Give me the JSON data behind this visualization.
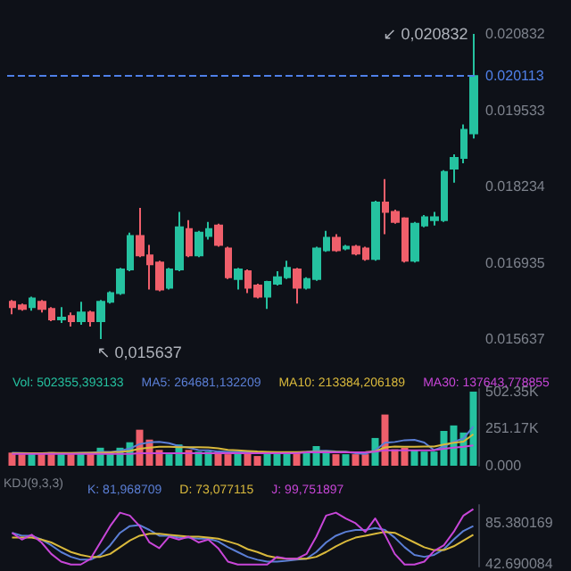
{
  "chart_data": [
    {
      "type": "candlestick",
      "categories": [
        null,
        null,
        null,
        null,
        null,
        null,
        null,
        null,
        null,
        null,
        null,
        null,
        null,
        null,
        null,
        null,
        null,
        null,
        null,
        null,
        null,
        null,
        null,
        null,
        null,
        null,
        null,
        null,
        null,
        null,
        null,
        null,
        null,
        null,
        null,
        null,
        null,
        null,
        null,
        null,
        null,
        null,
        null,
        null,
        null,
        null,
        null,
        null
      ],
      "ohlc": [
        [
          0.01627,
          0.0163,
          0.01606,
          0.01618
        ],
        [
          0.01621,
          0.01624,
          0.01612,
          0.01615
        ],
        [
          0.01618,
          0.01636,
          0.01612,
          0.01633
        ],
        [
          0.01627,
          0.0163,
          0.01609,
          0.01615
        ],
        [
          0.01615,
          0.01618,
          0.01594,
          0.01597
        ],
        [
          0.01597,
          0.01618,
          0.01591,
          0.016
        ],
        [
          0.01603,
          0.01609,
          0.01585,
          0.01594
        ],
        [
          0.01594,
          0.01627,
          0.01588,
          0.01609
        ],
        [
          0.01609,
          0.01612,
          0.01585,
          0.01594
        ],
        [
          0.01594,
          0.0163,
          0.015637,
          0.01627
        ],
        [
          0.01627,
          0.01645,
          0.01624,
          0.01642
        ],
        [
          0.01642,
          0.01685,
          0.01639,
          0.01682
        ],
        [
          0.01682,
          0.01745,
          0.01679,
          0.01739
        ],
        [
          0.01739,
          0.01787,
          0.01703,
          0.01706
        ],
        [
          0.01706,
          0.01724,
          0.01648,
          0.01691
        ],
        [
          0.01694,
          0.01697,
          0.01645,
          0.01648
        ],
        [
          0.01651,
          0.01685,
          0.01648,
          0.01682
        ],
        [
          0.01682,
          0.0178,
          0.01679,
          0.01754
        ],
        [
          0.01751,
          0.01766,
          0.01703,
          0.01706
        ],
        [
          0.01706,
          0.01748,
          0.01703,
          0.01745
        ],
        [
          0.01739,
          0.01763,
          0.01733,
          0.01751
        ],
        [
          0.01757,
          0.0176,
          0.01721,
          0.01724
        ],
        [
          0.01718,
          0.01721,
          0.01666,
          0.01669
        ],
        [
          0.01666,
          0.01685,
          0.01648,
          0.01682
        ],
        [
          0.01679,
          0.01682,
          0.01642,
          0.01651
        ],
        [
          0.01655,
          0.01658,
          0.01633,
          0.01636
        ],
        [
          0.01636,
          0.01663,
          0.01615,
          0.01661
        ],
        [
          0.01658,
          0.01679,
          0.01655,
          0.01669
        ],
        [
          0.01669,
          0.01697,
          0.01666,
          0.01685
        ],
        [
          0.01682,
          0.01685,
          0.01624,
          0.01651
        ],
        [
          0.01651,
          0.01669,
          0.01648,
          0.01666
        ],
        [
          0.01666,
          0.01721,
          0.01663,
          0.01718
        ],
        [
          0.01715,
          0.01748,
          0.01712,
          0.01736
        ],
        [
          0.01736,
          0.01742,
          0.01712,
          0.01715
        ],
        [
          0.01718,
          0.01724,
          0.01715,
          0.01721
        ],
        [
          0.01721,
          0.01724,
          0.01706,
          0.01709
        ],
        [
          0.01718,
          0.01721,
          0.01697,
          0.017
        ],
        [
          0.017,
          0.01799,
          0.01697,
          0.01796
        ],
        [
          0.01796,
          0.01836,
          0.01742,
          0.0178
        ],
        [
          0.0178,
          0.01784,
          0.0176,
          0.01763
        ],
        [
          0.01769,
          0.01771,
          0.01694,
          0.01697
        ],
        [
          0.01697,
          0.01763,
          0.01694,
          0.0176
        ],
        [
          0.01757,
          0.01775,
          0.01754,
          0.01771
        ],
        [
          0.01766,
          0.0178,
          0.01757,
          0.01771
        ],
        [
          0.01766,
          0.01851,
          0.01763,
          0.01848
        ],
        [
          0.01854,
          0.01878,
          0.0183,
          0.01872
        ],
        [
          0.01872,
          0.01929,
          0.01863,
          0.0192
        ],
        [
          0.01914,
          0.020832,
          0.01905,
          0.020113
        ]
      ],
      "colors": [
        "#ef5f6b",
        "#ef5f6b",
        "#25c2a0",
        "#ef5f6b",
        "#ef5f6b",
        "#25c2a0",
        "#ef5f6b",
        "#25c2a0",
        "#ef5f6b",
        "#25c2a0",
        "#25c2a0",
        "#25c2a0",
        "#25c2a0",
        "#ef5f6b",
        "#ef5f6b",
        "#ef5f6b",
        "#25c2a0",
        "#25c2a0",
        "#ef5f6b",
        "#25c2a0",
        "#25c2a0",
        "#ef5f6b",
        "#ef5f6b",
        "#25c2a0",
        "#ef5f6b",
        "#ef5f6b",
        "#25c2a0",
        "#25c2a0",
        "#25c2a0",
        "#ef5f6b",
        "#25c2a0",
        "#25c2a0",
        "#25c2a0",
        "#ef5f6b",
        "#25c2a0",
        "#ef5f6b",
        "#ef5f6b",
        "#25c2a0",
        "#ef5f6b",
        "#ef5f6b",
        "#ef5f6b",
        "#25c2a0",
        "#25c2a0",
        "#25c2a0",
        "#25c2a0",
        "#25c2a0",
        "#25c2a0",
        "#25c2a0"
      ],
      "ylim": [
        0.015637,
        0.020832
      ],
      "yticks": [
        0.015637,
        0.016935,
        0.018234,
        0.019533,
        0.020832
      ],
      "ref_lines": [
        {
          "axis": "y",
          "value": 0.020113,
          "label": "0.020113",
          "color": "#4f80e8",
          "line_style": "dashed"
        }
      ],
      "annotations": [
        "↙ 0,020832",
        "↖ 0,015637"
      ],
      "tick_labels": "y"
    },
    {
      "type": "bar",
      "categories": [
        null,
        null,
        null,
        null,
        null,
        null,
        null,
        null,
        null,
        null,
        null,
        null,
        null,
        null,
        null,
        null,
        null,
        null,
        null,
        null,
        null,
        null,
        null,
        null,
        null,
        null,
        null,
        null,
        null,
        null,
        null,
        null,
        null,
        null,
        null,
        null,
        null,
        null,
        null,
        null,
        null,
        null,
        null,
        null,
        null,
        null,
        null,
        null
      ],
      "series": [
        {
          "name": "Vol: 502355,393133",
          "type": "bar",
          "values": [
            89000,
            78000,
            89000,
            85000,
            92000,
            78000,
            89000,
            89000,
            89000,
            122000,
            89000,
            122000,
            159000,
            244000,
            177000,
            107000,
            78000,
            144000,
            107000,
            96000,
            96000,
            96000,
            78000,
            96000,
            96000,
            66000,
            96000,
            89000,
            96000,
            89000,
            96000,
            133000,
            89000,
            78000,
            78000,
            78000,
            78000,
            188000,
            347000,
            111000,
            122000,
            107000,
            96000,
            96000,
            236000,
            273000,
            225000,
            502355
          ],
          "colors": [
            "#ef5f6b",
            "#ef5f6b",
            "#25c2a0",
            "#ef5f6b",
            "#ef5f6b",
            "#25c2a0",
            "#ef5f6b",
            "#25c2a0",
            "#ef5f6b",
            "#25c2a0",
            "#25c2a0",
            "#25c2a0",
            "#25c2a0",
            "#ef5f6b",
            "#ef5f6b",
            "#ef5f6b",
            "#25c2a0",
            "#25c2a0",
            "#ef5f6b",
            "#25c2a0",
            "#25c2a0",
            "#ef5f6b",
            "#ef5f6b",
            "#25c2a0",
            "#ef5f6b",
            "#ef5f6b",
            "#25c2a0",
            "#25c2a0",
            "#25c2a0",
            "#ef5f6b",
            "#25c2a0",
            "#25c2a0",
            "#25c2a0",
            "#ef5f6b",
            "#25c2a0",
            "#ef5f6b",
            "#ef5f6b",
            "#25c2a0",
            "#ef5f6b",
            "#ef5f6b",
            "#ef5f6b",
            "#25c2a0",
            "#25c2a0",
            "#25c2a0",
            "#25c2a0",
            "#25c2a0",
            "#25c2a0",
            "#25c2a0"
          ]
        },
        {
          "name": "MA5: 264681,132209",
          "type": "line",
          "color": "#5b7fd6",
          "values": [
            88000,
            86000,
            85000,
            84000,
            86000,
            84000,
            85000,
            87000,
            87000,
            93000,
            93000,
            102000,
            116000,
            147000,
            158000,
            162000,
            153000,
            133000,
            123000,
            106000,
            104000,
            96000,
            94000,
            93000,
            92000,
            86000,
            86000,
            87000,
            89000,
            89000,
            93000,
            100000,
            101000,
            97000,
            95000,
            84000,
            80000,
            104000,
            156000,
            161000,
            173000,
            175000,
            157000,
            106000,
            131000,
            162000,
            185000,
            264681
          ]
        },
        {
          "name": "MA10: 213384,206189",
          "type": "line",
          "color": "#d9b93c",
          "values": [
            85000,
            85000,
            85000,
            85000,
            86000,
            86000,
            86000,
            86000,
            87000,
            88000,
            90000,
            94000,
            100000,
            115000,
            122000,
            128000,
            128000,
            125000,
            125000,
            125000,
            124000,
            118000,
            108000,
            104000,
            100000,
            96000,
            94000,
            92000,
            92000,
            92000,
            93000,
            93000,
            94000,
            93000,
            92000,
            91000,
            92000,
            97000,
            124000,
            130000,
            128000,
            128000,
            130000,
            130000,
            143000,
            156000,
            163000,
            213384
          ]
        },
        {
          "name": "MA30: 137643,778855",
          "type": "line",
          "color": "#c846d8",
          "values": [
            80000,
            80000,
            80000,
            80000,
            80000,
            80000,
            80000,
            80000,
            80000,
            80000,
            80000,
            80000,
            80000,
            85000,
            85000,
            85000,
            85000,
            85000,
            85000,
            85000,
            85000,
            85000,
            85000,
            85000,
            85000,
            85000,
            85000,
            85000,
            85000,
            85000,
            90000,
            90000,
            90000,
            90000,
            90000,
            90000,
            90000,
            95000,
            105000,
            105000,
            105000,
            105000,
            105000,
            105000,
            115000,
            122000,
            128000,
            137644
          ]
        }
      ],
      "ylim": [
        0,
        520000
      ],
      "yticks": [
        {
          "value": 0,
          "label": "0.000"
        },
        {
          "value": 251170,
          "label": "251.17K"
        },
        {
          "value": 502350,
          "label": "502.35K"
        }
      ],
      "legend": "top",
      "marker": "none",
      "tick_labels": "y"
    },
    {
      "type": "line",
      "title": "KDJ(9,3,3)",
      "categories": [
        null,
        null,
        null,
        null,
        null,
        null,
        null,
        null,
        null,
        null,
        null,
        null,
        null,
        null,
        null,
        null,
        null,
        null,
        null,
        null,
        null,
        null,
        null,
        null,
        null,
        null,
        null,
        null,
        null,
        null,
        null,
        null,
        null,
        null,
        null,
        null,
        null,
        null,
        null,
        null,
        null,
        null,
        null,
        null,
        null,
        null,
        null,
        null
      ],
      "series": [
        {
          "name": "K: 81,968709",
          "color": "#5b7fd6",
          "values": [
            75,
            72,
            72,
            68,
            62,
            55,
            50,
            47,
            47,
            52,
            62,
            75,
            82,
            83,
            78,
            72,
            72,
            70,
            70,
            69,
            69,
            66,
            60,
            55,
            50,
            47,
            45,
            45,
            46,
            47,
            48,
            55,
            65,
            72,
            76,
            78,
            78,
            80,
            78,
            70,
            60,
            52,
            50,
            52,
            58,
            68,
            77,
            81.968709
          ]
        },
        {
          "name": "D: 73,077115",
          "color": "#d9b93c",
          "values": [
            70,
            70,
            70,
            68,
            65,
            60,
            55,
            52,
            50,
            50,
            53,
            60,
            67,
            72,
            74,
            74,
            73,
            72,
            71,
            71,
            70,
            69,
            66,
            63,
            58,
            55,
            51,
            49,
            48,
            48,
            48,
            50,
            55,
            61,
            66,
            70,
            72,
            74,
            76,
            75,
            70,
            65,
            60,
            57,
            57,
            61,
            67,
            73.077115
          ]
        },
        {
          "name": "J: 99,751897",
          "color": "#c846d8",
          "values": [
            75,
            68,
            73,
            65,
            53,
            45,
            42,
            42,
            48,
            65,
            82,
            96,
            93,
            82,
            65,
            59,
            71,
            68,
            71,
            65,
            68,
            59,
            45,
            42,
            42,
            42,
            42,
            50,
            48,
            48,
            53,
            71,
            93,
            96,
            90,
            85,
            76,
            90,
            73,
            53,
            42,
            42,
            45,
            56,
            62,
            76,
            93,
            99.751897
          ]
        }
      ],
      "ylim": [
        40,
        104
      ],
      "yticks": [
        42.690084,
        85.380169
      ],
      "legend": "top left",
      "marker": "none",
      "tick_labels": "y"
    }
  ]
}
